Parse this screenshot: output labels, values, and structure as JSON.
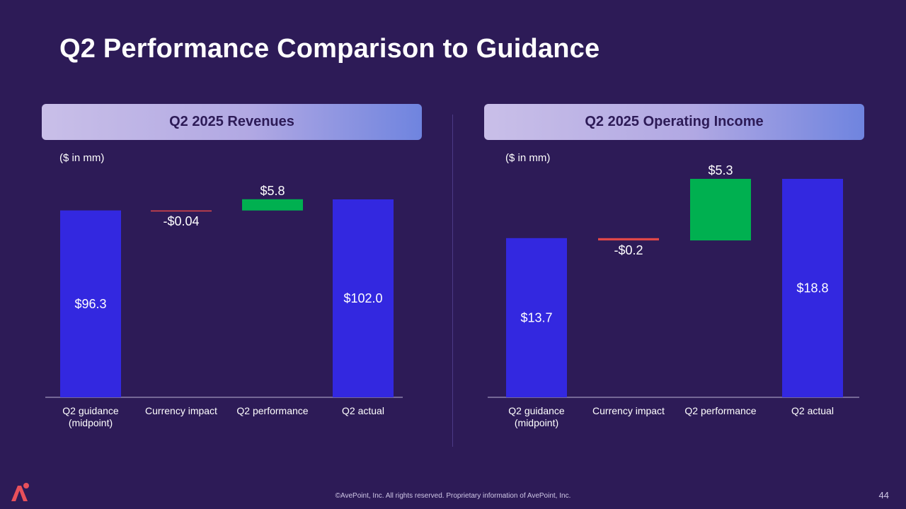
{
  "title": "Q2 Performance Comparison to Guidance",
  "colors": {
    "background": "#2d1b57",
    "total_bar": "#3328e0",
    "positive": "#00b050",
    "negative": "#e04848",
    "axis": "#bdb6d6"
  },
  "chart_data": [
    {
      "type": "waterfall",
      "title": "Q2 2025 Revenues",
      "unit_label": "($ in mm)",
      "categories": [
        "Q2 guidance\n(midpoint)",
        "Currency impact",
        "Q2 performance",
        "Q2 actual"
      ],
      "values": [
        96.3,
        -0.04,
        5.8,
        102.0
      ],
      "labels": [
        "$96.3",
        "-$0.04",
        "$5.8",
        "$102.0"
      ],
      "kinds": [
        "total",
        "delta",
        "delta",
        "total"
      ],
      "ylim": [
        0,
        102.0
      ]
    },
    {
      "type": "waterfall",
      "title": "Q2 2025 Operating Income",
      "unit_label": "($ in mm)",
      "categories": [
        "Q2 guidance\n(midpoint)",
        "Currency impact",
        "Q2 performance",
        "Q2 actual"
      ],
      "values": [
        13.7,
        -0.2,
        5.3,
        18.8
      ],
      "labels": [
        "$13.7",
        "-$0.2",
        "$5.3",
        "$18.8"
      ],
      "kinds": [
        "total",
        "delta",
        "delta",
        "total"
      ],
      "ylim": [
        0,
        18.8
      ]
    }
  ],
  "footer": "©AvePoint, Inc. All rights reserved. Proprietary information of AvePoint, Inc.",
  "page_number": "44",
  "logo_icon": "avepoint-logo-icon"
}
